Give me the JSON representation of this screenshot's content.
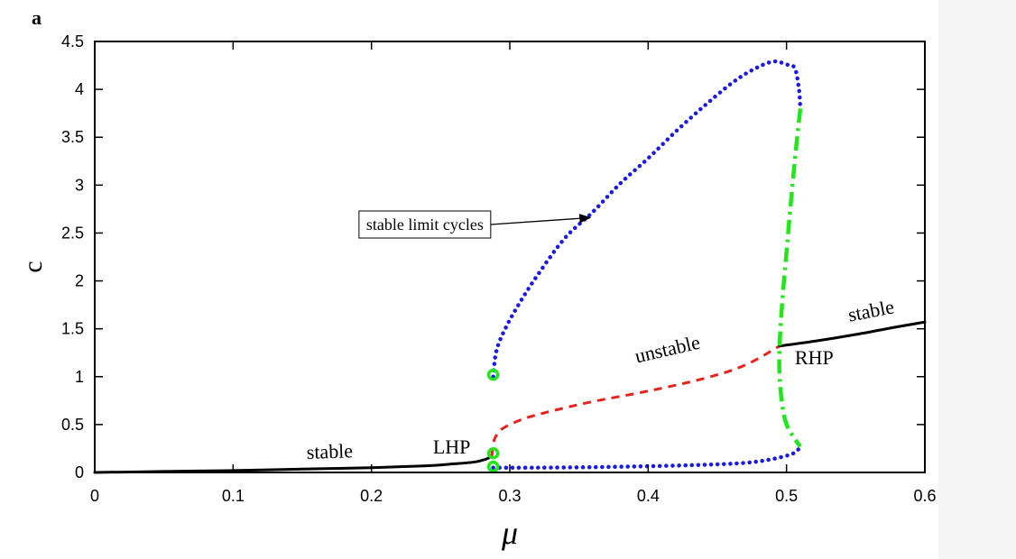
{
  "panel_label": "a",
  "chart_data": {
    "type": "line",
    "xlabel": "μ",
    "ylabel": "c",
    "xlim": [
      0,
      0.6
    ],
    "ylim": [
      0,
      4.5
    ],
    "x_ticks": [
      0,
      0.1,
      0.2,
      0.3,
      0.4,
      0.5,
      0.6
    ],
    "x_tick_labels": [
      "0",
      "0.1",
      "0.2",
      "0.3",
      "0.4",
      "0.5",
      "0.6"
    ],
    "y_ticks": [
      0,
      0.5,
      1,
      1.5,
      2,
      2.5,
      3,
      3.5,
      4,
      4.5
    ],
    "y_tick_labels": [
      "0",
      "0.5",
      "1",
      "1.5",
      "2",
      "2.5",
      "3",
      "3.5",
      "4",
      "4.5"
    ],
    "grid": false,
    "series": [
      {
        "id": "stable-left",
        "style": "solid",
        "color": "#000000",
        "points": [
          [
            0,
            0.0
          ],
          [
            0.05,
            0.01
          ],
          [
            0.1,
            0.02
          ],
          [
            0.15,
            0.035
          ],
          [
            0.2,
            0.05
          ],
          [
            0.24,
            0.07
          ],
          [
            0.26,
            0.09
          ],
          [
            0.275,
            0.11
          ],
          [
            0.283,
            0.14
          ],
          [
            0.287,
            0.17
          ]
        ]
      },
      {
        "id": "unstable-middle",
        "style": "dashed",
        "color": "#e8221b",
        "points": [
          [
            0.287,
            0.17
          ],
          [
            0.288,
            0.3
          ],
          [
            0.29,
            0.38
          ],
          [
            0.295,
            0.46
          ],
          [
            0.31,
            0.56
          ],
          [
            0.33,
            0.64
          ],
          [
            0.36,
            0.74
          ],
          [
            0.4,
            0.85
          ],
          [
            0.44,
            0.98
          ],
          [
            0.47,
            1.12
          ],
          [
            0.495,
            1.32
          ]
        ]
      },
      {
        "id": "stable-right",
        "style": "solid",
        "color": "#000000",
        "points": [
          [
            0.495,
            1.32
          ],
          [
            0.52,
            1.37
          ],
          [
            0.55,
            1.44
          ],
          [
            0.58,
            1.52
          ],
          [
            0.6,
            1.57
          ]
        ]
      },
      {
        "id": "limit-cycles-upper",
        "style": "dotted",
        "color": "#1a1ae6",
        "points": [
          [
            0.288,
            1.0
          ],
          [
            0.29,
            1.25
          ],
          [
            0.295,
            1.45
          ],
          [
            0.305,
            1.72
          ],
          [
            0.32,
            2.06
          ],
          [
            0.34,
            2.45
          ],
          [
            0.36,
            2.72
          ],
          [
            0.38,
            3.02
          ],
          [
            0.4,
            3.28
          ],
          [
            0.42,
            3.56
          ],
          [
            0.44,
            3.82
          ],
          [
            0.46,
            4.06
          ],
          [
            0.475,
            4.2
          ],
          [
            0.49,
            4.29
          ],
          [
            0.5,
            4.26
          ],
          [
            0.506,
            4.22
          ],
          [
            0.509,
            4.0
          ],
          [
            0.51,
            3.8
          ]
        ]
      },
      {
        "id": "limit-cycles-lower",
        "style": "dotted",
        "color": "#1a1ae6",
        "points": [
          [
            0.288,
            0.05
          ],
          [
            0.32,
            0.05
          ],
          [
            0.36,
            0.055
          ],
          [
            0.4,
            0.065
          ],
          [
            0.44,
            0.08
          ],
          [
            0.47,
            0.1
          ],
          [
            0.49,
            0.14
          ],
          [
            0.505,
            0.2
          ],
          [
            0.51,
            0.27
          ]
        ]
      },
      {
        "id": "unstable-limit-cycles",
        "style": "dashdot",
        "color": "#22e61a",
        "points": [
          [
            0.51,
            3.8
          ],
          [
            0.507,
            3.4
          ],
          [
            0.503,
            2.8
          ],
          [
            0.5,
            2.3
          ],
          [
            0.497,
            1.8
          ],
          [
            0.495,
            1.32
          ],
          [
            0.495,
            1.0
          ],
          [
            0.497,
            0.7
          ],
          [
            0.5,
            0.5
          ],
          [
            0.506,
            0.35
          ],
          [
            0.51,
            0.27
          ]
        ]
      }
    ],
    "markers": [
      {
        "x": 0.288,
        "y": 1.02,
        "color": "#22e61a"
      },
      {
        "x": 0.288,
        "y": 0.2,
        "color": "#22e61a"
      },
      {
        "x": 0.288,
        "y": 0.06,
        "color": "#22e61a"
      }
    ],
    "annotations": [
      {
        "text": "stable",
        "x": 0.17,
        "y": 0.15,
        "rotate": -2,
        "size": 22
      },
      {
        "text": "LHP",
        "x": 0.258,
        "y": 0.2,
        "rotate": 0,
        "size": 22
      },
      {
        "text": "unstable",
        "x": 0.415,
        "y": 1.22,
        "rotate": -13,
        "size": 22
      },
      {
        "text": "stable",
        "x": 0.562,
        "y": 1.62,
        "rotate": -11,
        "size": 22
      },
      {
        "text": "RHP",
        "x": 0.52,
        "y": 1.13,
        "rotate": 0,
        "size": 22
      }
    ],
    "callout": {
      "text": "stable limit cycles",
      "box_x": 0.191,
      "box_y": 2.73,
      "arrow_to": [
        0.358,
        2.66
      ]
    }
  }
}
